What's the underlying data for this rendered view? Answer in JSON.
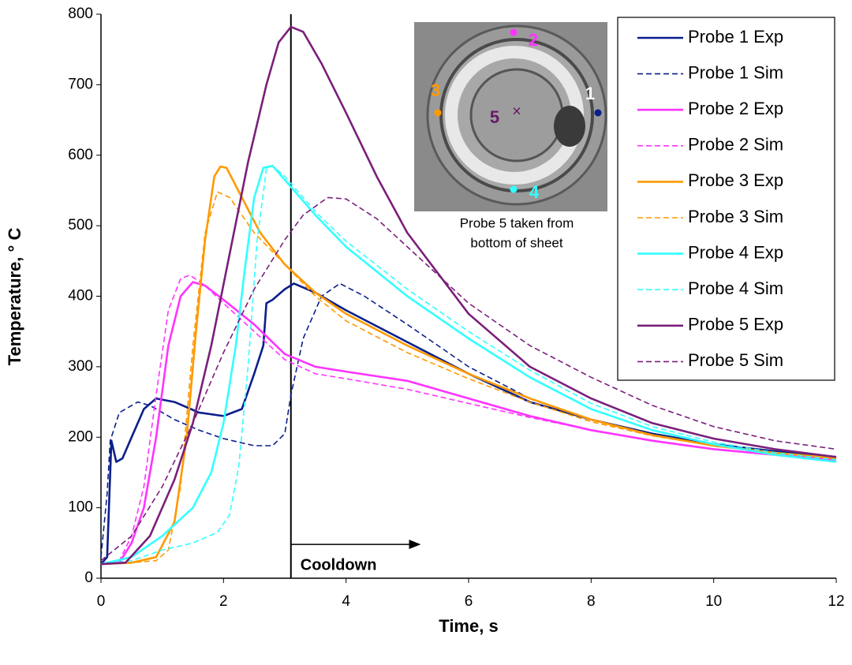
{
  "chart_data": {
    "type": "line",
    "x_label": "Time, s",
    "y_label": "Temperature, ° C",
    "xlim": [
      0,
      12
    ],
    "xticks": [
      0,
      2,
      4,
      6,
      8,
      10,
      12
    ],
    "ylim": [
      0,
      800
    ],
    "yticks": [
      0,
      100,
      200,
      300,
      400,
      500,
      600,
      700,
      800
    ],
    "grid": false,
    "legend": "top-right",
    "annotations": {
      "cooldown": {
        "text": "Cooldown",
        "x": 3.1,
        "arrow_end": 5.2,
        "y": 48
      },
      "inset_note": [
        "Probe 5 taken from",
        "bottom of sheet"
      ],
      "probe_marks": [
        {
          "text": "1",
          "color": "#ffffff",
          "dot": "#0b1f8a"
        },
        {
          "text": "2",
          "color": "#ff33ff",
          "dot": "#ff33ff"
        },
        {
          "text": "3",
          "color": "#ff9900",
          "dot": "#ff9900"
        },
        {
          "text": "4",
          "color": "#33ffff",
          "dot": "#33ffff"
        },
        {
          "text": "5",
          "color": "#661a66",
          "dot": "#661a66"
        }
      ]
    },
    "series": [
      {
        "name": "Probe 1 Exp",
        "color": "#0b1f8a",
        "dashed": false,
        "x": [
          0,
          0.1,
          0.17,
          0.25,
          0.35,
          0.5,
          0.7,
          0.9,
          1.2,
          1.6,
          2,
          2.3,
          2.5,
          2.65,
          2.7,
          2.8,
          3,
          3.15,
          3.5,
          4,
          5,
          6,
          7,
          8,
          9,
          10,
          11,
          12
        ],
        "values": [
          20,
          30,
          195,
          165,
          170,
          200,
          240,
          255,
          250,
          235,
          230,
          240,
          290,
          330,
          390,
          395,
          410,
          418,
          405,
          380,
          335,
          290,
          250,
          225,
          205,
          190,
          180,
          172
        ]
      },
      {
        "name": "Probe 1 Sim",
        "color": "#0b1f8a",
        "dashed": true,
        "x": [
          0,
          0.1,
          0.15,
          0.3,
          0.6,
          0.8,
          1.2,
          1.6,
          2,
          2.5,
          2.8,
          3,
          3.1,
          3.3,
          3.6,
          3.9,
          4.3,
          5,
          6,
          7,
          8,
          9,
          10,
          11,
          12
        ],
        "values": [
          30,
          120,
          195,
          235,
          250,
          245,
          225,
          210,
          198,
          188,
          188,
          205,
          260,
          340,
          400,
          418,
          400,
          360,
          300,
          255,
          225,
          205,
          190,
          180,
          172
        ]
      },
      {
        "name": "Probe 2 Exp",
        "color": "#ff33ff",
        "dashed": false,
        "x": [
          0,
          0.3,
          0.5,
          0.7,
          0.9,
          1.1,
          1.3,
          1.5,
          1.7,
          2,
          2.5,
          3,
          3.5,
          4,
          5,
          6,
          7,
          8,
          9,
          10,
          11,
          12
        ],
        "values": [
          20,
          22,
          50,
          100,
          200,
          330,
          400,
          420,
          415,
          395,
          360,
          318,
          300,
          293,
          280,
          255,
          230,
          210,
          195,
          183,
          175,
          168
        ]
      },
      {
        "name": "Probe 2 Sim",
        "color": "#ff33ff",
        "dashed": true,
        "x": [
          0,
          0.3,
          0.5,
          0.7,
          0.9,
          1.1,
          1.3,
          1.45,
          1.7,
          2,
          2.5,
          3,
          3.5,
          4,
          5,
          6,
          7,
          8,
          9,
          10,
          11,
          12
        ],
        "values": [
          20,
          25,
          60,
          130,
          260,
          380,
          425,
          430,
          415,
          390,
          350,
          310,
          290,
          283,
          268,
          248,
          228,
          210,
          195,
          183,
          175,
          168
        ]
      },
      {
        "name": "Probe 3 Exp",
        "color": "#ff9900",
        "dashed": false,
        "x": [
          0,
          0.5,
          0.9,
          1.2,
          1.4,
          1.55,
          1.7,
          1.85,
          1.95,
          2.05,
          2.3,
          2.6,
          3,
          3.5,
          4,
          5,
          6,
          7,
          8,
          9,
          10,
          11,
          12
        ],
        "values": [
          20,
          22,
          30,
          80,
          200,
          350,
          480,
          570,
          584,
          582,
          540,
          490,
          445,
          405,
          375,
          330,
          290,
          255,
          225,
          203,
          188,
          178,
          170
        ]
      },
      {
        "name": "Probe 3 Sim",
        "color": "#ff9900",
        "dashed": true,
        "x": [
          0,
          0.5,
          0.9,
          1.1,
          1.3,
          1.5,
          1.7,
          1.9,
          2.1,
          2.5,
          3,
          3.5,
          4,
          5,
          6,
          7,
          8,
          9,
          10,
          11,
          12
        ],
        "values": [
          20,
          22,
          25,
          40,
          130,
          330,
          490,
          548,
          540,
          490,
          445,
          400,
          365,
          320,
          283,
          250,
          222,
          202,
          188,
          178,
          170
        ]
      },
      {
        "name": "Probe 4 Exp",
        "color": "#33ffff",
        "dashed": false,
        "x": [
          0,
          0.5,
          1,
          1.5,
          1.8,
          2,
          2.2,
          2.35,
          2.5,
          2.65,
          2.8,
          3,
          3.5,
          4,
          5,
          6,
          7,
          8,
          9,
          10,
          11,
          12
        ],
        "values": [
          20,
          30,
          60,
          100,
          150,
          220,
          330,
          440,
          540,
          582,
          585,
          565,
          515,
          470,
          400,
          340,
          285,
          240,
          210,
          190,
          175,
          165
        ]
      },
      {
        "name": "Probe 4 Sim",
        "color": "#33ffff",
        "dashed": true,
        "x": [
          0,
          0.5,
          1,
          1.5,
          1.9,
          2.1,
          2.25,
          2.4,
          2.55,
          2.7,
          2.8,
          3,
          3.5,
          4,
          5,
          6,
          7,
          8,
          9,
          10,
          11,
          12
        ],
        "values": [
          20,
          25,
          40,
          50,
          65,
          90,
          160,
          300,
          480,
          580,
          585,
          570,
          520,
          478,
          410,
          350,
          295,
          248,
          215,
          193,
          178,
          168
        ]
      },
      {
        "name": "Probe 5 Exp",
        "color": "#7a1f7a",
        "dashed": false,
        "x": [
          0,
          0.4,
          0.8,
          1.2,
          1.5,
          1.8,
          2.1,
          2.4,
          2.7,
          2.9,
          3.1,
          3.3,
          3.6,
          4,
          4.5,
          5,
          6,
          7,
          8,
          9,
          10,
          11,
          12
        ],
        "values": [
          20,
          22,
          60,
          140,
          220,
          330,
          460,
          590,
          700,
          760,
          782,
          775,
          730,
          660,
          570,
          490,
          375,
          300,
          255,
          220,
          198,
          183,
          172
        ]
      },
      {
        "name": "Probe 5 Sim",
        "color": "#7a1f7a",
        "dashed": true,
        "x": [
          0,
          0.5,
          1,
          1.5,
          2,
          2.5,
          3,
          3.3,
          3.7,
          4,
          4.5,
          5,
          6,
          7,
          8,
          9,
          10,
          11,
          12
        ],
        "values": [
          25,
          60,
          130,
          220,
          320,
          410,
          480,
          515,
          540,
          538,
          510,
          470,
          390,
          330,
          285,
          245,
          215,
          195,
          183
        ]
      }
    ]
  }
}
